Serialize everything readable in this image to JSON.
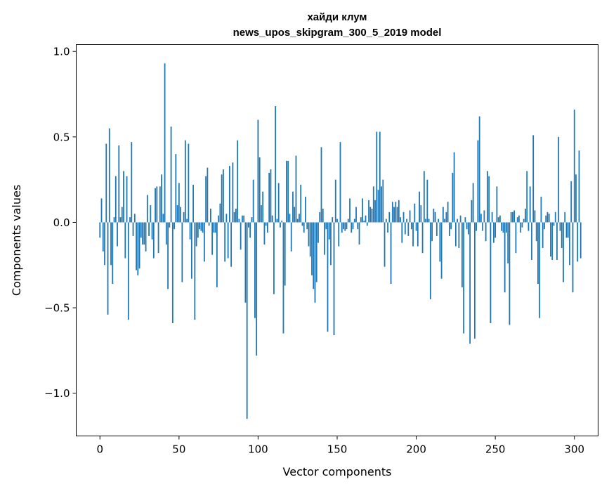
{
  "chart_data": {
    "type": "bar",
    "title": "хайди клум",
    "subtitle": "news_upos_skipgram_300_5_2019 model",
    "xlabel": "Vector components",
    "ylabel": "Components values",
    "xlim": [
      -15,
      315
    ],
    "ylim": [
      -1.25,
      1.04
    ],
    "xticks": [
      0,
      50,
      100,
      150,
      200,
      250,
      300
    ],
    "xtick_labels": [
      "0",
      "50",
      "100",
      "150",
      "200",
      "250",
      "300"
    ],
    "yticks": [
      -1.0,
      -0.5,
      0.0,
      0.5,
      1.0
    ],
    "ytick_labels": [
      "−1.0",
      "−0.5",
      "0.0",
      "0.5",
      "1.0"
    ],
    "color": "#1f77b4",
    "values": [
      -0.09,
      0.14,
      -0.17,
      -0.25,
      0.46,
      -0.54,
      0.55,
      -0.25,
      -0.36,
      0.03,
      0.27,
      -0.14,
      0.45,
      0.03,
      0.09,
      0.3,
      -0.21,
      0.27,
      -0.57,
      0.03,
      0.47,
      -0.08,
      0.05,
      -0.28,
      -0.31,
      -0.27,
      -0.09,
      -0.13,
      -0.13,
      -0.17,
      0.16,
      -0.08,
      0.1,
      -0.1,
      -0.21,
      0.2,
      0.21,
      -0.18,
      0.21,
      0.28,
      0.05,
      0.93,
      -0.13,
      -0.39,
      -0.03,
      0.56,
      -0.59,
      -0.04,
      0.4,
      0.1,
      0.23,
      0.09,
      -0.35,
      0.06,
      0.48,
      0.02,
      0.46,
      -0.1,
      -0.33,
      0.22,
      -0.57,
      -0.14,
      -0.09,
      -0.04,
      -0.05,
      -0.06,
      -0.23,
      0.27,
      0.32,
      -0.02,
      0.08,
      -0.19,
      -0.06,
      -0.06,
      -0.38,
      0.04,
      0.11,
      0.28,
      0.31,
      -0.23,
      0.05,
      -0.21,
      0.33,
      -0.26,
      0.35,
      0.06,
      0.08,
      0.48,
      0.02,
      -0.16,
      0.04,
      0.04,
      -0.47,
      -1.15,
      -0.03,
      -0.09,
      0.03,
      0.25,
      -0.56,
      -0.78,
      0.6,
      0.38,
      0.1,
      0.18,
      -0.13,
      -0.02,
      -0.06,
      0.29,
      0.31,
      0.04,
      -0.42,
      0.68,
      0.02,
      0.23,
      -0.03,
      0.01,
      -0.65,
      -0.37,
      0.36,
      0.36,
      0.05,
      -0.17,
      0.18,
      0.09,
      0.39,
      0.02,
      0.05,
      0.22,
      -0.02,
      -0.06,
      0.15,
      -0.04,
      -0.14,
      -0.2,
      -0.31,
      -0.39,
      -0.47,
      -0.35,
      -0.12,
      0.06,
      0.44,
      0.08,
      -0.19,
      -0.04,
      -0.64,
      -0.1,
      -0.25,
      0.03,
      -0.66,
      0.25,
      0.02,
      -0.14,
      0.47,
      -0.06,
      -0.04,
      -0.05,
      -0.04,
      0.02,
      0.14,
      -0.06,
      -0.04,
      0.02,
      0.09,
      -0.04,
      -0.13,
      0.03,
      0.14,
      0.01,
      0.04,
      -0.02,
      0.13,
      0.09,
      0.08,
      0.21,
      0.13,
      0.53,
      0.19,
      0.53,
      0.21,
      0.25,
      -0.26,
      0.02,
      -0.06,
      0.06,
      -0.36,
      0.12,
      0.09,
      0.12,
      0.09,
      0.13,
      0.03,
      -0.12,
      0.06,
      -0.07,
      0.02,
      -0.08,
      0.07,
      -0.04,
      -0.14,
      0.11,
      -0.05,
      -0.14,
      0.18,
      0.1,
      -0.18,
      0.3,
      0.02,
      0.25,
      0.02,
      -0.45,
      -0.11,
      0.08,
      0.06,
      -0.08,
      0.02,
      -0.23,
      -0.33,
      0.09,
      0.02,
      0.06,
      0.12,
      -0.08,
      -0.04,
      0.29,
      0.41,
      -0.14,
      0.02,
      -0.15,
      0.04,
      -0.38,
      -0.65,
      0.03,
      -0.04,
      -0.07,
      -0.71,
      0.13,
      0.23,
      -0.68,
      -0.05,
      0.48,
      0.62,
      0.05,
      -0.05,
      0.07,
      -0.11,
      0.3,
      0.27,
      -0.59,
      0.06,
      -0.12,
      -0.09,
      0.21,
      0.03,
      0.04,
      -0.05,
      -0.06,
      -0.41,
      -0.06,
      -0.24,
      -0.6,
      0.06,
      0.06,
      0.07,
      -0.18,
      0.03,
      0.04,
      -0.06,
      -0.03,
      0.02,
      0.08,
      0.3,
      -0.05,
      0.21,
      -0.22,
      0.51,
      0.07,
      -0.11,
      -0.36,
      -0.56,
      0.15,
      -0.15,
      -0.04,
      0.04,
      0.06,
      0.05,
      -0.2,
      -0.22,
      -0.02,
      0.06,
      -0.22,
      0.5,
      -0.05,
      -0.15,
      -0.35,
      0.06,
      -0.09,
      -0.09,
      -0.25,
      0.24,
      -0.41,
      0.66,
      0.28,
      -0.23,
      0.42,
      -0.21
    ]
  }
}
